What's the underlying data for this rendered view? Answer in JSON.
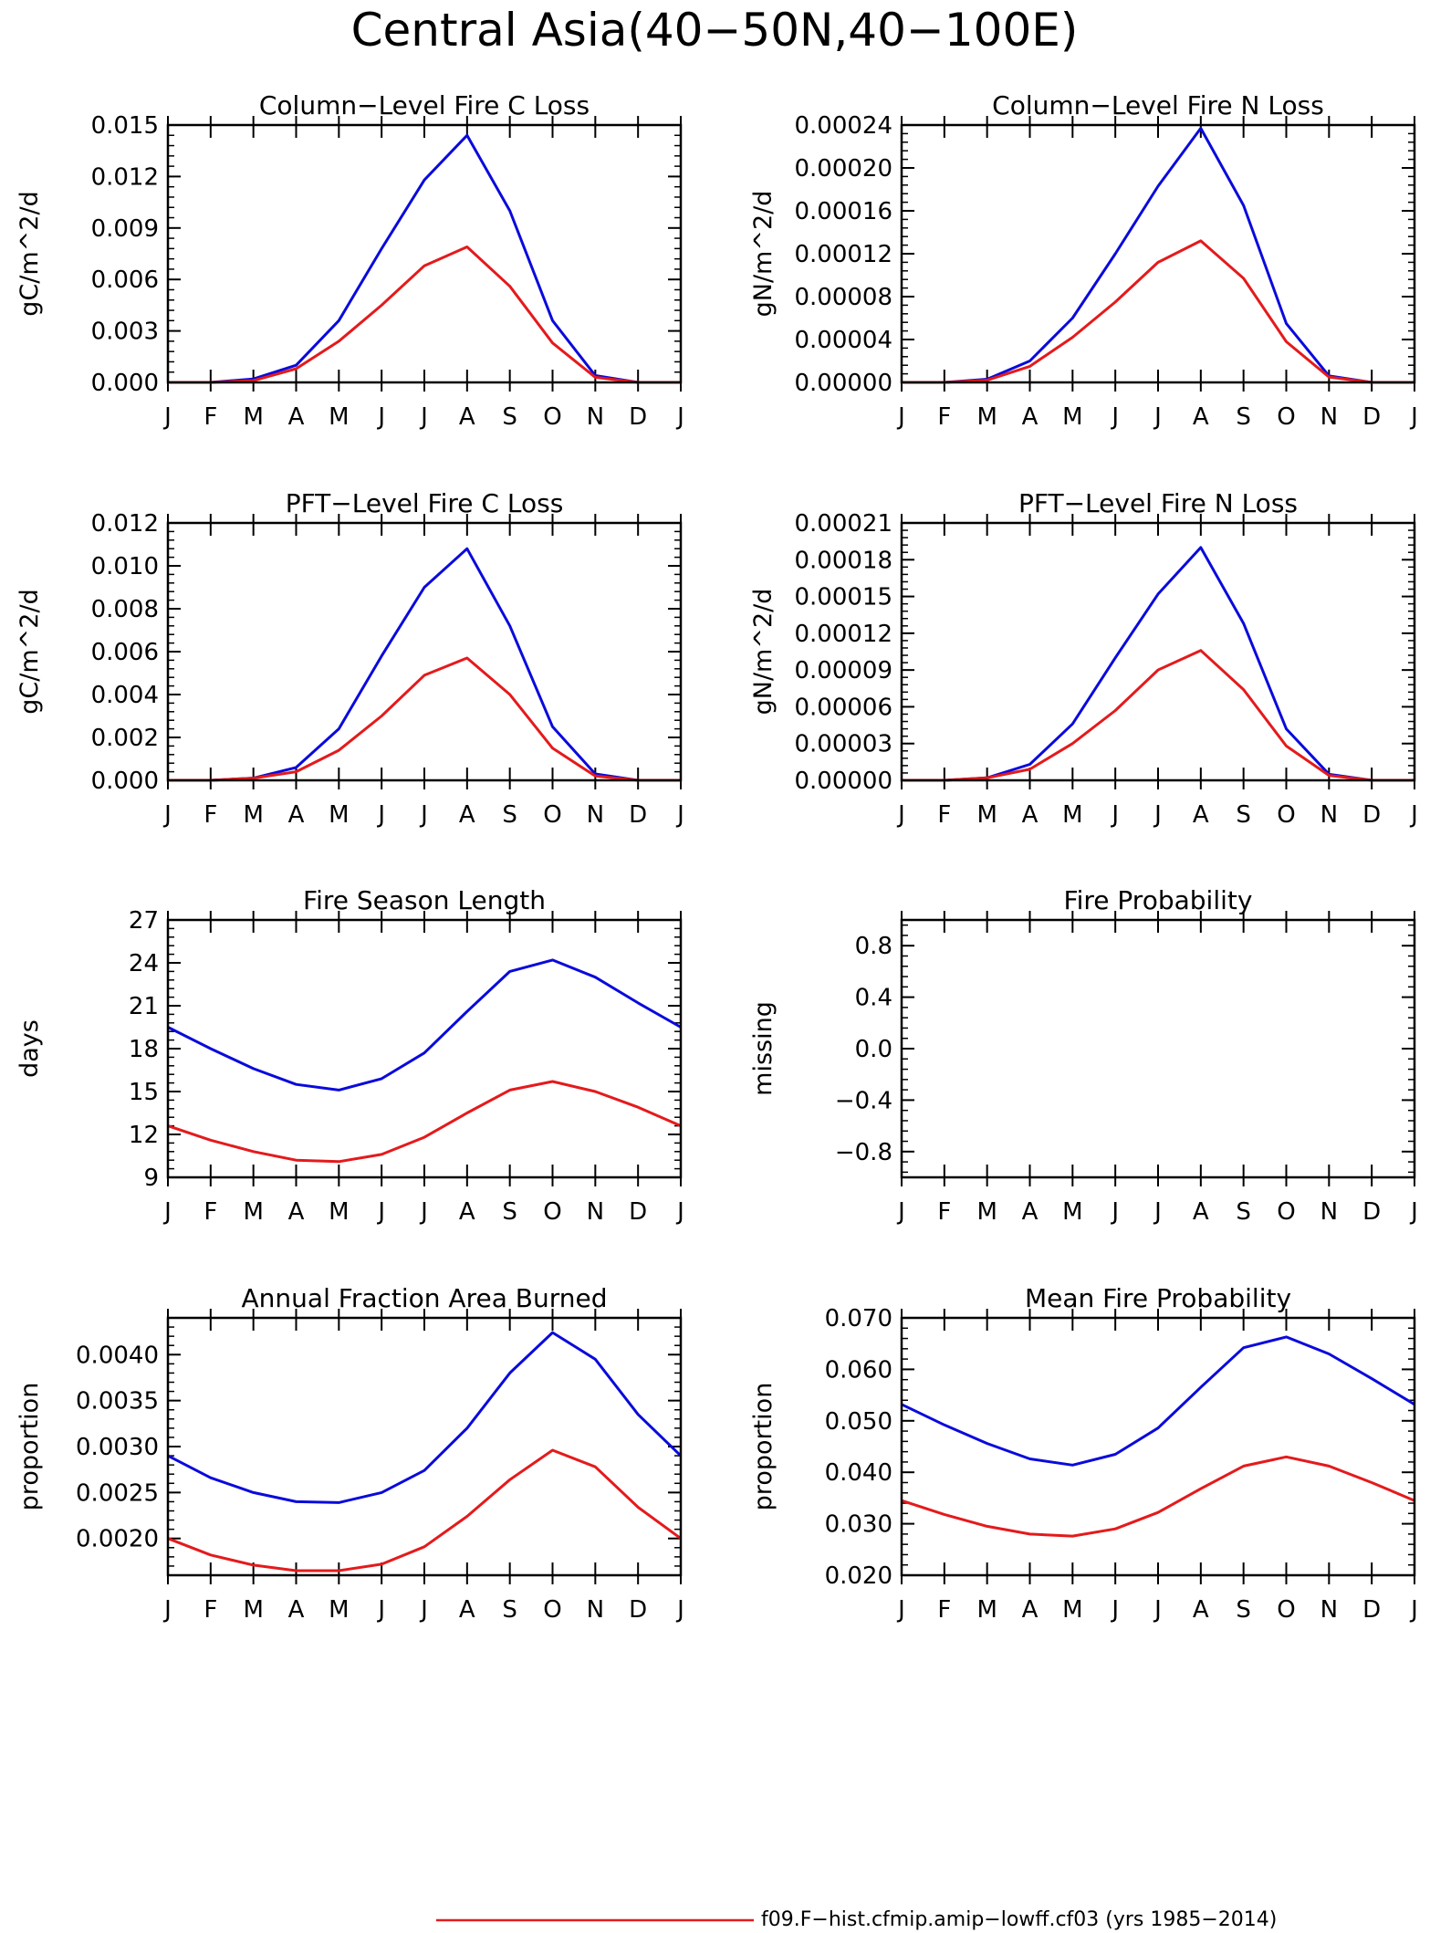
{
  "figure": {
    "title": "Central Asia(40−50N,40−100E)",
    "legend": [
      {
        "label": "f09.F−hist.cfmip.amip−lowff.cf03 (yrs 1985−2014)",
        "color": "#e41a1c"
      }
    ],
    "colors": {
      "series_a": "#0a0adc",
      "series_b": "#e41a1c"
    }
  },
  "chart_data": [
    {
      "type": "line",
      "title": "Column−Level Fire C Loss",
      "ylabel": "gC/m^2/d",
      "x": [
        "J",
        "F",
        "M",
        "A",
        "M",
        "J",
        "J",
        "A",
        "S",
        "O",
        "N",
        "D",
        "J"
      ],
      "ylim": [
        0,
        0.015
      ],
      "yticks": [
        0,
        0.003,
        0.006,
        0.009,
        0.012,
        0.015
      ],
      "ytick_labels": [
        "0.000",
        "0.003",
        "0.006",
        "0.009",
        "0.012",
        "0.015"
      ],
      "series": [
        {
          "color": "#0a0adc",
          "values": [
            0,
            0,
            0.0002,
            0.001,
            0.0036,
            0.0078,
            0.0118,
            0.0144,
            0.01,
            0.0036,
            0.0004,
            0,
            0
          ]
        },
        {
          "color": "#e41a1c",
          "values": [
            0,
            0,
            0.0001,
            0.0008,
            0.0024,
            0.0045,
            0.0068,
            0.0079,
            0.0056,
            0.0023,
            0.0003,
            0,
            0
          ]
        }
      ]
    },
    {
      "type": "line",
      "title": "Column−Level Fire N Loss",
      "ylabel": "gN/m^2/d",
      "x": [
        "J",
        "F",
        "M",
        "A",
        "M",
        "J",
        "J",
        "A",
        "S",
        "O",
        "N",
        "D",
        "J"
      ],
      "ylim": [
        0,
        0.00024
      ],
      "yticks": [
        0,
        4e-05,
        8e-05,
        0.00012,
        0.00016,
        0.0002,
        0.00024
      ],
      "ytick_labels": [
        "0.00000",
        "0.00004",
        "0.00008",
        "0.00012",
        "0.00016",
        "0.00020",
        "0.00024"
      ],
      "series": [
        {
          "color": "#0a0adc",
          "values": [
            0,
            0,
            3e-06,
            2e-05,
            6e-05,
            0.00012,
            0.000183,
            0.000237,
            0.000165,
            5.5e-05,
            6e-06,
            0,
            0
          ]
        },
        {
          "color": "#e41a1c",
          "values": [
            0,
            0,
            2e-06,
            1.5e-05,
            4.2e-05,
            7.5e-05,
            0.000112,
            0.000132,
            9.7e-05,
            3.8e-05,
            5e-06,
            0,
            0
          ]
        }
      ]
    },
    {
      "type": "line",
      "title": "PFT−Level Fire C Loss",
      "ylabel": "gC/m^2/d",
      "x": [
        "J",
        "F",
        "M",
        "A",
        "M",
        "J",
        "J",
        "A",
        "S",
        "O",
        "N",
        "D",
        "J"
      ],
      "ylim": [
        0,
        0.012
      ],
      "yticks": [
        0,
        0.002,
        0.004,
        0.006,
        0.008,
        0.01,
        0.012
      ],
      "ytick_labels": [
        "0.000",
        "0.002",
        "0.004",
        "0.006",
        "0.008",
        "0.010",
        "0.012"
      ],
      "series": [
        {
          "color": "#0a0adc",
          "values": [
            0,
            0,
            0.0001,
            0.0006,
            0.0024,
            0.0058,
            0.009,
            0.0108,
            0.0072,
            0.0025,
            0.0003,
            0,
            0
          ]
        },
        {
          "color": "#e41a1c",
          "values": [
            0,
            0,
            0.0001,
            0.0004,
            0.0014,
            0.003,
            0.0049,
            0.0057,
            0.004,
            0.0015,
            0.0002,
            0,
            0
          ]
        }
      ]
    },
    {
      "type": "line",
      "title": "PFT−Level Fire N Loss",
      "ylabel": "gN/m^2/d",
      "x": [
        "J",
        "F",
        "M",
        "A",
        "M",
        "J",
        "J",
        "A",
        "S",
        "O",
        "N",
        "D",
        "J"
      ],
      "ylim": [
        0,
        0.00021
      ],
      "yticks": [
        0,
        3e-05,
        6e-05,
        9e-05,
        0.00012,
        0.00015,
        0.00018,
        0.00021
      ],
      "ytick_labels": [
        "0.00000",
        "0.00003",
        "0.00006",
        "0.00009",
        "0.00012",
        "0.00015",
        "0.00018",
        "0.00021"
      ],
      "series": [
        {
          "color": "#0a0adc",
          "values": [
            0,
            0,
            2e-06,
            1.3e-05,
            4.6e-05,
            0.0001,
            0.000152,
            0.00019,
            0.000128,
            4.2e-05,
            5e-06,
            0,
            0
          ]
        },
        {
          "color": "#e41a1c",
          "values": [
            0,
            0,
            2e-06,
            9e-06,
            3e-05,
            5.7e-05,
            9e-05,
            0.000106,
            7.4e-05,
            2.8e-05,
            4e-06,
            0,
            0
          ]
        }
      ]
    },
    {
      "type": "line",
      "title": "Fire Season Length",
      "ylabel": "days",
      "x": [
        "J",
        "F",
        "M",
        "A",
        "M",
        "J",
        "J",
        "A",
        "S",
        "O",
        "N",
        "D",
        "J"
      ],
      "ylim": [
        9,
        27
      ],
      "yticks": [
        9,
        12,
        15,
        18,
        21,
        24,
        27
      ],
      "ytick_labels": [
        "9",
        "12",
        "15",
        "18",
        "21",
        "24",
        "27"
      ],
      "series": [
        {
          "color": "#0a0adc",
          "values": [
            19.5,
            18.0,
            16.6,
            15.5,
            15.1,
            15.9,
            17.7,
            20.6,
            23.4,
            24.2,
            23.0,
            21.2,
            19.5
          ]
        },
        {
          "color": "#e41a1c",
          "values": [
            12.6,
            11.6,
            10.8,
            10.2,
            10.1,
            10.6,
            11.8,
            13.5,
            15.1,
            15.7,
            15.0,
            13.9,
            12.6
          ]
        }
      ]
    },
    {
      "type": "line",
      "title": "Fire Probability",
      "ylabel": "missing",
      "x": [
        "J",
        "F",
        "M",
        "A",
        "M",
        "J",
        "J",
        "A",
        "S",
        "O",
        "N",
        "D",
        "J"
      ],
      "ylim": [
        -1,
        1
      ],
      "yticks": [
        -0.8,
        -0.4,
        0.0,
        0.4,
        0.8
      ],
      "ytick_labels": [
        "−0.8",
        "−0.4",
        "0.0",
        "0.4",
        "0.8"
      ],
      "series": []
    },
    {
      "type": "line",
      "title": "Annual Fraction Area Burned",
      "ylabel": "proportion",
      "x": [
        "J",
        "F",
        "M",
        "A",
        "M",
        "J",
        "J",
        "A",
        "S",
        "O",
        "N",
        "D",
        "J"
      ],
      "ylim": [
        0.0016,
        0.0044
      ],
      "yticks": [
        0.002,
        0.0025,
        0.003,
        0.0035,
        0.004
      ],
      "ytick_labels": [
        "0.0020",
        "0.0025",
        "0.0030",
        "0.0035",
        "0.0040"
      ],
      "series": [
        {
          "color": "#0a0adc",
          "values": [
            0.0029,
            0.00266,
            0.0025,
            0.0024,
            0.00239,
            0.0025,
            0.00274,
            0.0032,
            0.0038,
            0.00424,
            0.00395,
            0.00335,
            0.0029
          ]
        },
        {
          "color": "#e41a1c",
          "values": [
            0.002,
            0.00182,
            0.00171,
            0.00165,
            0.00165,
            0.00172,
            0.00191,
            0.00224,
            0.00264,
            0.00296,
            0.00278,
            0.00234,
            0.002
          ]
        }
      ]
    },
    {
      "type": "line",
      "title": "Mean Fire Probability",
      "ylabel": "proportion",
      "x": [
        "J",
        "F",
        "M",
        "A",
        "M",
        "J",
        "J",
        "A",
        "S",
        "O",
        "N",
        "D",
        "J"
      ],
      "ylim": [
        0.02,
        0.07
      ],
      "yticks": [
        0.02,
        0.03,
        0.04,
        0.05,
        0.06,
        0.07
      ],
      "ytick_labels": [
        "0.020",
        "0.030",
        "0.040",
        "0.050",
        "0.060",
        "0.070"
      ],
      "series": [
        {
          "color": "#0a0adc",
          "values": [
            0.0532,
            0.0492,
            0.0456,
            0.0426,
            0.0414,
            0.0435,
            0.0486,
            0.0565,
            0.0642,
            0.0663,
            0.063,
            0.0582,
            0.0532
          ]
        },
        {
          "color": "#e41a1c",
          "values": [
            0.0345,
            0.0318,
            0.0295,
            0.028,
            0.0276,
            0.029,
            0.0322,
            0.0368,
            0.0412,
            0.043,
            0.0412,
            0.038,
            0.0345
          ]
        }
      ]
    }
  ]
}
